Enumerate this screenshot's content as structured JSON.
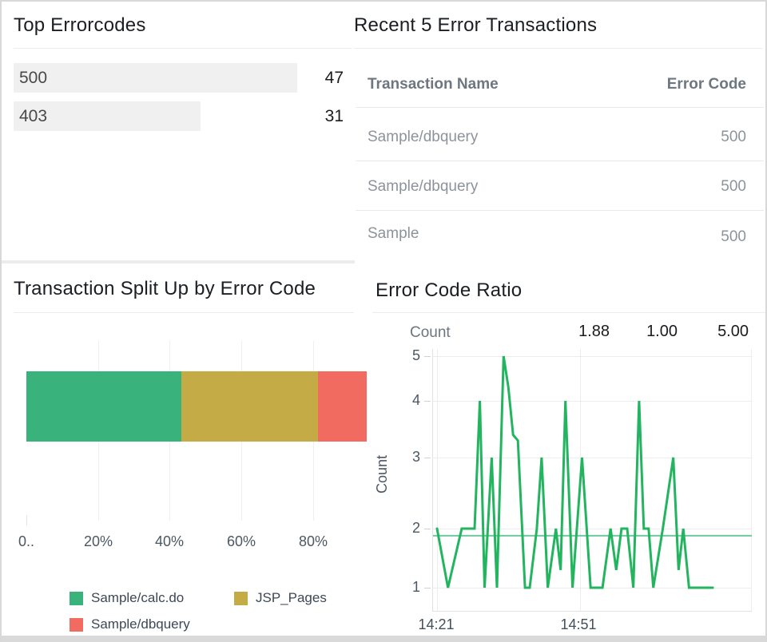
{
  "dashboard": {
    "bottom_bar_color": "#d9d9d9",
    "frame_border_color": "#d6d8da"
  },
  "panels": {
    "top_errorcodes": {
      "title": "Top Errorcodes",
      "bar_bg": "#f0f0f0",
      "items": [
        {
          "label": "500",
          "count": "47"
        },
        {
          "label": "403",
          "count": "31"
        }
      ]
    },
    "recent_transactions": {
      "title": "Recent 5 Error Transactions",
      "columns": [
        "Transaction Name",
        "Error Code"
      ],
      "rows": [
        {
          "name": "Sample/dbquery",
          "code": "500"
        },
        {
          "name": "Sample/dbquery",
          "code": "500"
        },
        {
          "name": "Sample",
          "code": "500"
        }
      ]
    },
    "split_by_error_code": {
      "title": "Transaction Split Up by Error Code"
    },
    "error_code_ratio": {
      "title": "Error Code Ratio"
    }
  },
  "chart_data": [
    {
      "type": "bar",
      "subtype": "stacked-horizontal-percent",
      "title": "Transaction Split Up by Error Code",
      "x_ticks": [
        "0..",
        "20%",
        "40%",
        "60%",
        "80%"
      ],
      "axis_range_pct": [
        0,
        100
      ],
      "grid": true,
      "segments": [
        {
          "name": "Sample/calc.do",
          "value_pct": 43.2,
          "color": "#3ab27b"
        },
        {
          "name": "JSP_Pages",
          "value_pct": 38.2,
          "color": "#c4ab45"
        },
        {
          "name": "Sample/dbquery",
          "value_pct": 13.6,
          "color": "#f26b61"
        }
      ],
      "legend": [
        {
          "label": "Sample/calc.do",
          "color": "#3ab27b"
        },
        {
          "label": "JSP_Pages",
          "color": "#c4ab45"
        },
        {
          "label": "Sample/dbquery",
          "color": "#f26b61"
        }
      ],
      "legend_position": "bottom"
    },
    {
      "type": "line",
      "title": "Error Code Ratio",
      "ylabel": "Count",
      "legend_label": "Count",
      "stats": {
        "avg": "1.88",
        "min": "1.00",
        "max": "5.00"
      },
      "average_value": 1.88,
      "ylim": [
        1,
        5
      ],
      "y_ticks": [
        "5",
        "4",
        "3",
        "2",
        "1"
      ],
      "x_ticks": [
        "14:21",
        "14:51"
      ],
      "x_tick_interval_min": 30,
      "line_color": "#23b45f",
      "average_line_color": "#6ec8a0",
      "grid": true,
      "minutes": [
        0,
        2.3,
        5.2,
        6,
        7,
        7.9,
        9,
        10,
        11.5,
        12.6,
        14,
        15,
        16,
        17,
        18.5,
        19.5,
        21,
        22,
        23.3,
        25,
        26,
        27,
        28.5,
        30.5,
        32.3,
        33.5,
        34.8,
        36.5,
        37.7,
        38.8,
        40,
        41.3,
        42.5,
        43.5,
        44.5,
        45.5,
        47.5,
        49.7,
        50.8,
        51.8,
        53,
        54,
        55,
        56,
        57,
        58
      ],
      "values": [
        2,
        1,
        2,
        2,
        2,
        2,
        4,
        1,
        3,
        1,
        5,
        4.3,
        3.4,
        3.3,
        1,
        1,
        2,
        3,
        1,
        2,
        1.3,
        4,
        1,
        3,
        1,
        1,
        1,
        2,
        1.3,
        2,
        2,
        1,
        4,
        2,
        2,
        1,
        2,
        3,
        1.3,
        2,
        1,
        1,
        1,
        1,
        1,
        1
      ]
    }
  ]
}
